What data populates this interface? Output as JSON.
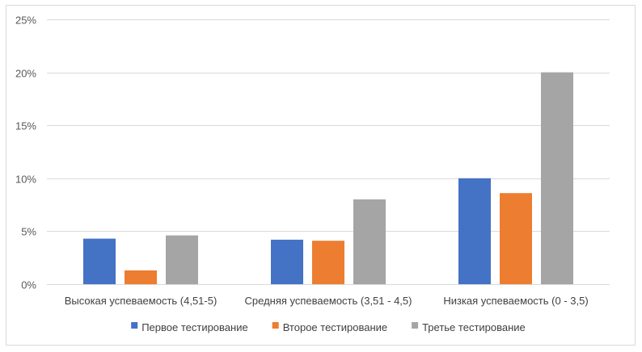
{
  "chart_data": {
    "type": "bar",
    "title": "",
    "xlabel": "",
    "ylabel": "",
    "categories": [
      "Высокая успеваемость (4,51-5)",
      "Средняя успеваемость (3,51 - 4,5)",
      "Низкая успеваемость (0 - 3,5)"
    ],
    "series": [
      {
        "name": "Первое тестирование",
        "color": "#4472c4",
        "values": [
          4.3,
          4.2,
          10.0
        ]
      },
      {
        "name": "Второе тестирование",
        "color": "#ed7d31",
        "values": [
          1.3,
          4.1,
          8.6
        ]
      },
      {
        "name": "Третье тестирование",
        "color": "#a5a5a5",
        "values": [
          4.6,
          8.0,
          20.0
        ]
      }
    ],
    "ylim": [
      0,
      25
    ],
    "yticks": [
      0,
      5,
      10,
      15,
      20,
      25
    ],
    "ytick_labels": [
      "0%",
      "5%",
      "10%",
      "15%",
      "20%",
      "25%"
    ],
    "grid": true,
    "legend_position": "bottom",
    "colors": {
      "gridline": "#d9d9d9",
      "border": "#d9d9d9"
    }
  }
}
